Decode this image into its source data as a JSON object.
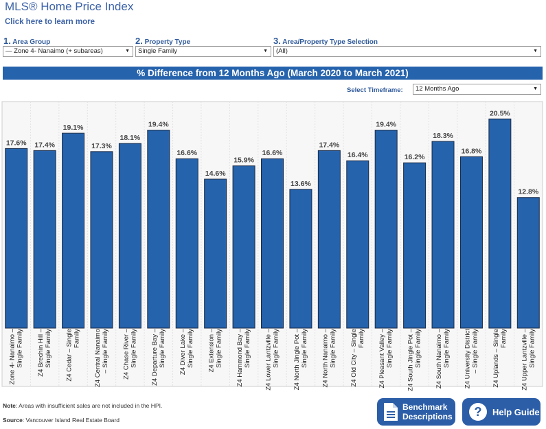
{
  "header": {
    "title": "MLS® Home Price Index",
    "learn_link": "Click here to learn more"
  },
  "filters": [
    {
      "num": "1.",
      "label": "Area Group",
      "value": "— Zone 4- Nanaimo (+ subareas)"
    },
    {
      "num": "2.",
      "label": "Property Type",
      "value": "Single Family"
    },
    {
      "num": "3.",
      "label": "Area/Property Type Selection",
      "value": "(All)"
    }
  ],
  "banner": "% Difference from 12 Months Ago (March 2020 to March 2021)",
  "timeframe": {
    "label": "Select Timeframe:",
    "value": "12 Months Ago"
  },
  "chart_data": {
    "type": "bar",
    "title": "% Difference from 12 Months Ago (March 2020 to March 2021)",
    "categories": [
      "Zone 4- Nanaimo – Single Family",
      "Z4 Brechin Hill – Single Family",
      "Z4 Cedar – Single Family",
      "Z4 Central Nanaimo – Single Family",
      "Z4 Chase River – Single Family",
      "Z4 Departure Bay – Single Family",
      "Z4 Diver Lake – Single Family",
      "Z4 Extension – Single Family",
      "Z4 Hammond Bay – Single Family",
      "Z4 Lower Lantzville – Single Family",
      "Z4 North Jingle Pot – Single Family",
      "Z4 North Nanaimo – Single Family",
      "Z4 Old City – Single Family",
      "Z4 Pleasant Valley – Single Family",
      "Z4 South Jingle Pot – Single Family",
      "Z4 South Nanaimo – Single Family",
      "Z4 University District – Single Family",
      "Z4 Uplands – Single Family",
      "Z4 Upper Lantzville – Single Family"
    ],
    "values": [
      17.6,
      17.4,
      19.1,
      17.3,
      18.1,
      19.4,
      16.6,
      14.6,
      15.9,
      16.6,
      13.6,
      17.4,
      16.4,
      19.4,
      16.2,
      18.3,
      16.8,
      20.5,
      12.8
    ],
    "value_suffix": "%",
    "ylim": [
      0,
      22.2
    ],
    "bar_color": "#2563ad"
  },
  "footer": {
    "note_bold": "Note",
    "note": ": Areas with insufficient sales are not included in the HPI.",
    "source_bold": "Source",
    "source": ": Vancouver Island Real Estate Board"
  },
  "buttons": {
    "benchmark_line1": "Benchmark",
    "benchmark_line2": "Descriptions",
    "help": "Help Guide"
  }
}
